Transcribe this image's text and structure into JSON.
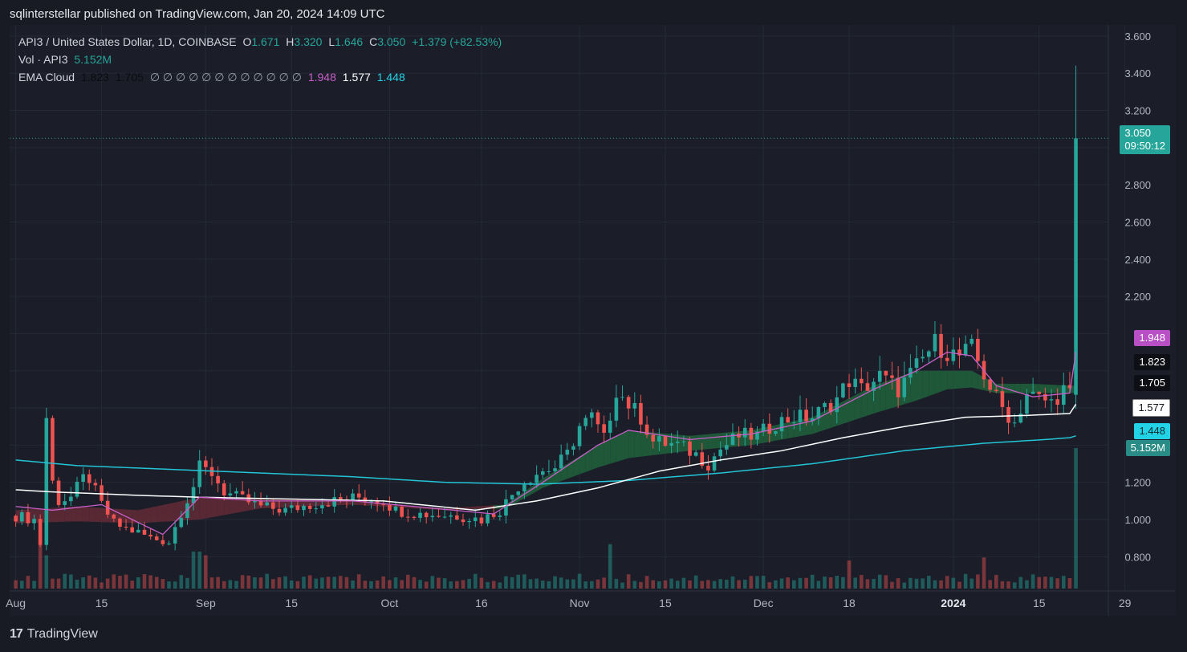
{
  "publisher": "sqlinterstellar published on TradingView.com, Jan 20, 2024 14:09 UTC",
  "brand": "TradingView",
  "legend": {
    "symbol": "API3 / United States Dollar, 1D, COINBASE",
    "o_label": "O",
    "o": "1.671",
    "h_label": "H",
    "h": "3.320",
    "l_label": "L",
    "l": "1.646",
    "c_label": "C",
    "c": "3.050",
    "change": "+1.379 (+82.53%)",
    "vol_label": "Vol · API3",
    "vol": "5.152M",
    "ema_label": "EMA Cloud",
    "ema_v1": "1.823",
    "ema_v2": "1.705",
    "ema_empty": "∅ ∅ ∅ ∅ ∅ ∅ ∅ ∅ ∅ ∅ ∅ ∅",
    "ema_v3": "1.948",
    "ema_v4": "1.577",
    "ema_v5": "1.448"
  },
  "price_tags": {
    "last_price": "3.050",
    "countdown": "09:50:12",
    "ema_fast": "1.948",
    "ema_a": "1.823",
    "ema_b": "1.705",
    "ema_mid": "1.577",
    "ema_slow": "1.448",
    "volume": "5.152M"
  },
  "colors": {
    "up": "#26a69a",
    "down": "#ef5350",
    "ema_fast": "#c75fc7",
    "ema_mid": "#ffffff",
    "ema_slow": "#22c4d6",
    "cloud_up": "#1f5c3a",
    "cloud_down": "#5c2a35"
  },
  "chart_data": {
    "type": "candlestick",
    "title": "API3 / United States Dollar, 1D, COINBASE",
    "y_ticks": [
      "0.800",
      "1.000",
      "1.200",
      "2.200",
      "2.400",
      "2.600",
      "2.800",
      "3.200",
      "3.400",
      "3.600"
    ],
    "ylim": [
      0.62,
      3.66
    ],
    "x_ticks": [
      "Aug",
      "15",
      "Sep",
      "15",
      "Oct",
      "16",
      "Nov",
      "15",
      "Dec",
      "18",
      "2024",
      "15",
      "29"
    ],
    "xlim_days": [
      -1,
      169
    ],
    "x_tick_days": [
      0,
      14,
      31,
      45,
      61,
      76,
      92,
      106,
      122,
      136,
      153,
      167,
      181
    ],
    "price_anchors": [
      [
        0,
        1.02
      ],
      [
        3,
        1.0
      ],
      [
        4,
        0.87
      ],
      [
        5,
        1.55
      ],
      [
        6,
        1.2
      ],
      [
        7,
        1.1
      ],
      [
        9,
        1.12
      ],
      [
        11,
        1.22
      ],
      [
        12,
        1.22
      ],
      [
        14,
        1.08
      ],
      [
        16,
        0.98
      ],
      [
        18,
        0.95
      ],
      [
        20,
        0.93
      ],
      [
        22,
        0.9
      ],
      [
        25,
        0.88
      ],
      [
        27,
        1.04
      ],
      [
        29,
        1.18
      ],
      [
        30,
        1.28
      ],
      [
        32,
        1.25
      ],
      [
        34,
        1.15
      ],
      [
        36,
        1.12
      ],
      [
        40,
        1.07
      ],
      [
        44,
        1.05
      ],
      [
        48,
        1.08
      ],
      [
        52,
        1.1
      ],
      [
        56,
        1.12
      ],
      [
        60,
        1.1
      ],
      [
        62,
        1.05
      ],
      [
        66,
        1.03
      ],
      [
        72,
        1.02
      ],
      [
        76,
        1.0
      ],
      [
        79,
        1.05
      ],
      [
        82,
        1.18
      ],
      [
        85,
        1.25
      ],
      [
        88,
        1.28
      ],
      [
        90,
        1.35
      ],
      [
        92,
        1.5
      ],
      [
        94,
        1.55
      ],
      [
        96,
        1.43
      ],
      [
        98,
        1.7
      ],
      [
        100,
        1.62
      ],
      [
        102,
        1.55
      ],
      [
        104,
        1.42
      ],
      [
        108,
        1.4
      ],
      [
        111,
        1.35
      ],
      [
        113,
        1.3
      ],
      [
        115,
        1.38
      ],
      [
        118,
        1.45
      ],
      [
        121,
        1.45
      ],
      [
        124,
        1.52
      ],
      [
        127,
        1.55
      ],
      [
        130,
        1.55
      ],
      [
        132,
        1.6
      ],
      [
        134,
        1.65
      ],
      [
        136,
        1.75
      ],
      [
        138,
        1.7
      ],
      [
        141,
        1.77
      ],
      [
        144,
        1.7
      ],
      [
        147,
        1.82
      ],
      [
        150,
        1.95
      ],
      [
        152,
        1.9
      ],
      [
        154,
        1.88
      ],
      [
        156,
        1.92
      ],
      [
        158,
        1.78
      ],
      [
        160,
        1.65
      ],
      [
        161,
        1.6
      ],
      [
        163,
        1.52
      ],
      [
        165,
        1.68
      ],
      [
        167,
        1.65
      ],
      [
        169,
        1.63
      ],
      [
        171,
        1.7
      ],
      [
        172,
        1.67
      ],
      [
        173,
        3.05
      ]
    ],
    "ema_fast_anchors": [
      [
        0,
        1.07
      ],
      [
        6,
        1.05
      ],
      [
        14,
        1.08
      ],
      [
        24,
        0.92
      ],
      [
        30,
        1.12
      ],
      [
        40,
        1.1
      ],
      [
        55,
        1.1
      ],
      [
        65,
        1.07
      ],
      [
        78,
        1.03
      ],
      [
        86,
        1.2
      ],
      [
        95,
        1.4
      ],
      [
        100,
        1.48
      ],
      [
        110,
        1.43
      ],
      [
        120,
        1.46
      ],
      [
        130,
        1.53
      ],
      [
        140,
        1.7
      ],
      [
        147,
        1.8
      ],
      [
        152,
        1.9
      ],
      [
        156,
        1.88
      ],
      [
        160,
        1.72
      ],
      [
        166,
        1.66
      ],
      [
        172,
        1.68
      ],
      [
        173,
        1.9
      ]
    ],
    "ema_mid_anchors": [
      [
        0,
        1.16
      ],
      [
        5,
        1.15
      ],
      [
        20,
        1.13
      ],
      [
        30,
        1.12
      ],
      [
        45,
        1.11
      ],
      [
        60,
        1.1
      ],
      [
        75,
        1.05
      ],
      [
        85,
        1.1
      ],
      [
        95,
        1.17
      ],
      [
        105,
        1.26
      ],
      [
        115,
        1.32
      ],
      [
        125,
        1.37
      ],
      [
        135,
        1.44
      ],
      [
        145,
        1.5
      ],
      [
        155,
        1.55
      ],
      [
        165,
        1.56
      ],
      [
        172,
        1.57
      ],
      [
        173,
        1.62
      ]
    ],
    "ema_slow_anchors": [
      [
        0,
        1.32
      ],
      [
        10,
        1.29
      ],
      [
        25,
        1.27
      ],
      [
        40,
        1.25
      ],
      [
        55,
        1.23
      ],
      [
        70,
        1.2
      ],
      [
        85,
        1.19
      ],
      [
        100,
        1.21
      ],
      [
        115,
        1.25
      ],
      [
        130,
        1.3
      ],
      [
        145,
        1.37
      ],
      [
        158,
        1.41
      ],
      [
        168,
        1.43
      ],
      [
        172,
        1.44
      ],
      [
        173,
        1.45
      ]
    ],
    "cloud_upper_anchors": [
      [
        0,
        1.05
      ],
      [
        10,
        1.07
      ],
      [
        20,
        1.05
      ],
      [
        30,
        1.12
      ],
      [
        40,
        1.11
      ],
      [
        55,
        1.1
      ],
      [
        70,
        1.06
      ],
      [
        80,
        1.08
      ],
      [
        86,
        1.22
      ],
      [
        95,
        1.4
      ],
      [
        100,
        1.48
      ],
      [
        110,
        1.45
      ],
      [
        120,
        1.48
      ],
      [
        130,
        1.55
      ],
      [
        140,
        1.72
      ],
      [
        147,
        1.8
      ],
      [
        152,
        1.8
      ],
      [
        156,
        1.8
      ],
      [
        160,
        1.73
      ],
      [
        166,
        1.73
      ],
      [
        172,
        1.72
      ]
    ],
    "cloud_lower_anchors": [
      [
        0,
        0.98
      ],
      [
        10,
        0.99
      ],
      [
        20,
        0.98
      ],
      [
        30,
        1.0
      ],
      [
        40,
        1.06
      ],
      [
        55,
        1.08
      ],
      [
        70,
        1.05
      ],
      [
        80,
        1.06
      ],
      [
        86,
        1.17
      ],
      [
        95,
        1.28
      ],
      [
        100,
        1.33
      ],
      [
        110,
        1.37
      ],
      [
        120,
        1.4
      ],
      [
        130,
        1.46
      ],
      [
        140,
        1.57
      ],
      [
        147,
        1.64
      ],
      [
        152,
        1.7
      ],
      [
        156,
        1.71
      ],
      [
        160,
        1.68
      ],
      [
        166,
        1.68
      ],
      [
        172,
        1.68
      ]
    ],
    "volume_note": "Per-candle volume bars along the bottom; last candle volume 5.152M",
    "volume_spikes": [
      [
        4,
        0.7
      ],
      [
        5,
        0.45
      ],
      [
        29,
        0.5
      ],
      [
        30,
        0.5
      ],
      [
        31,
        0.45
      ],
      [
        97,
        0.6
      ],
      [
        136,
        0.38
      ],
      [
        158,
        0.42
      ],
      [
        173,
        1.9
      ]
    ]
  }
}
